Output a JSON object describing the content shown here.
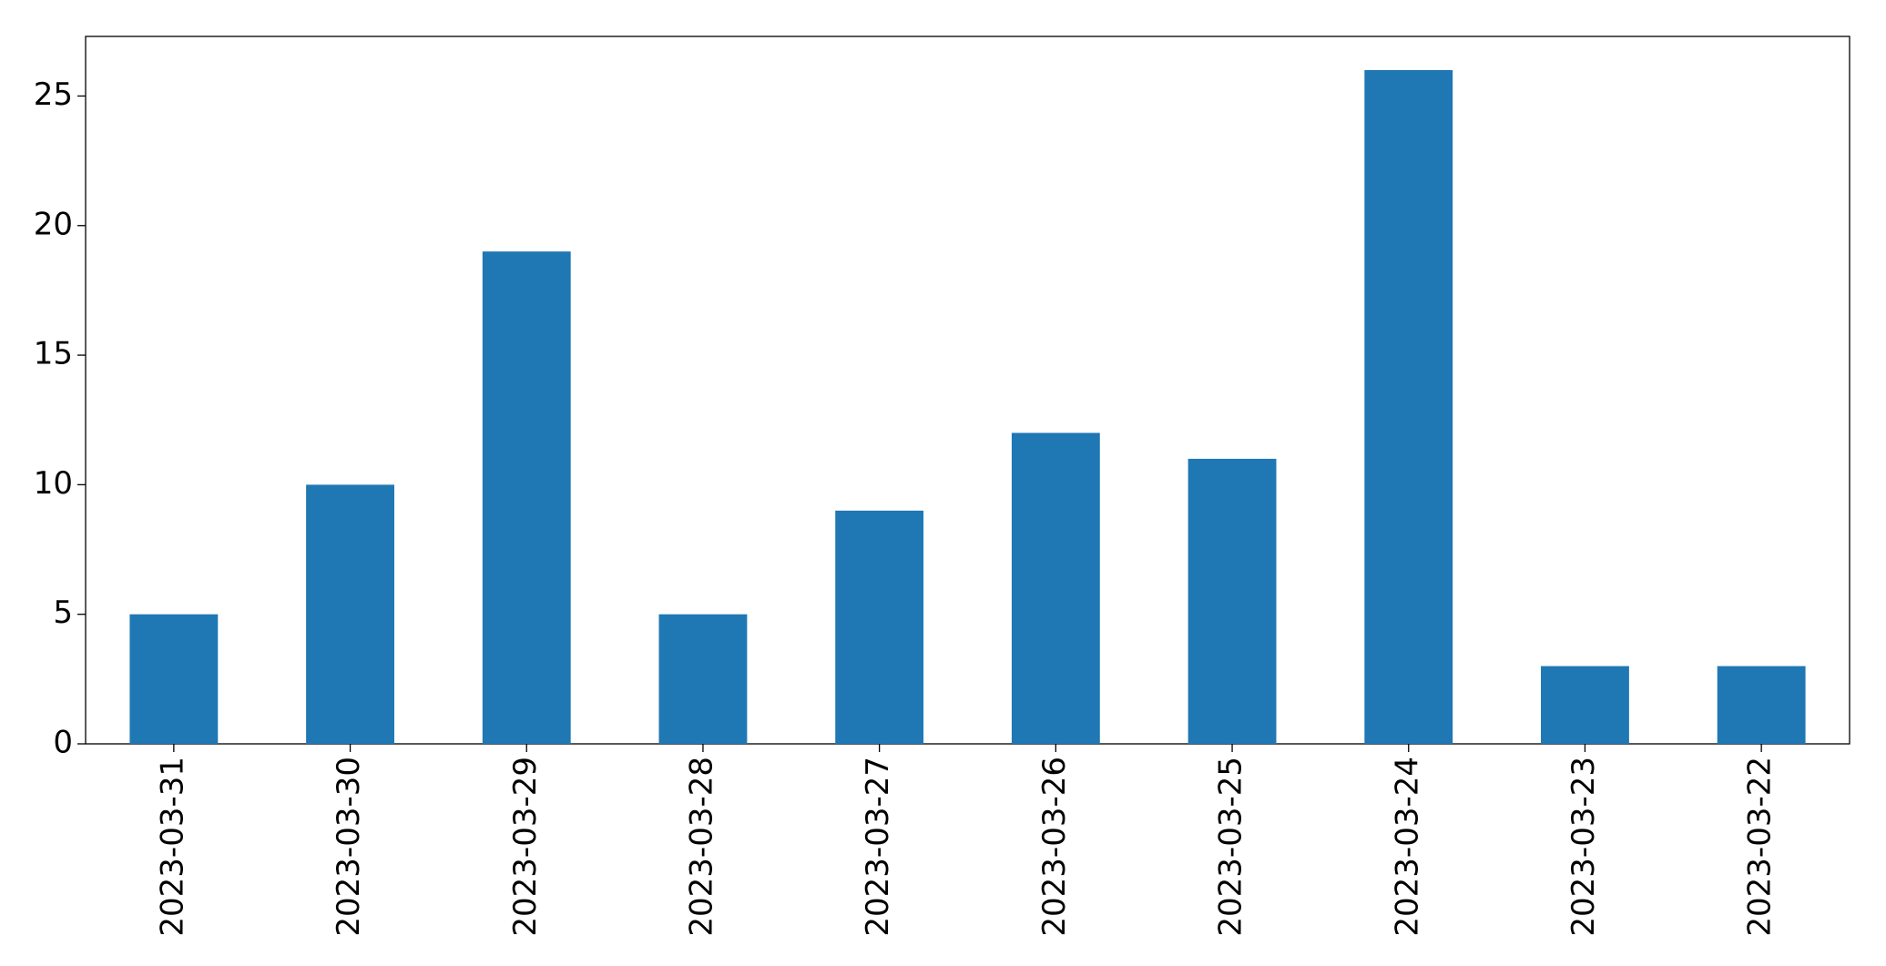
{
  "chart_data": {
    "type": "bar",
    "categories": [
      "2023-03-31",
      "2023-03-30",
      "2023-03-29",
      "2023-03-28",
      "2023-03-27",
      "2023-03-26",
      "2023-03-25",
      "2023-03-24",
      "2023-03-23",
      "2023-03-22"
    ],
    "values": [
      5,
      10,
      19,
      5,
      9,
      12,
      11,
      26,
      3,
      3
    ],
    "color": "#1f77b4",
    "ylim": [
      0,
      27.3
    ],
    "yticks": [
      0,
      5,
      10,
      15,
      20,
      25
    ],
    "grid": false
  }
}
